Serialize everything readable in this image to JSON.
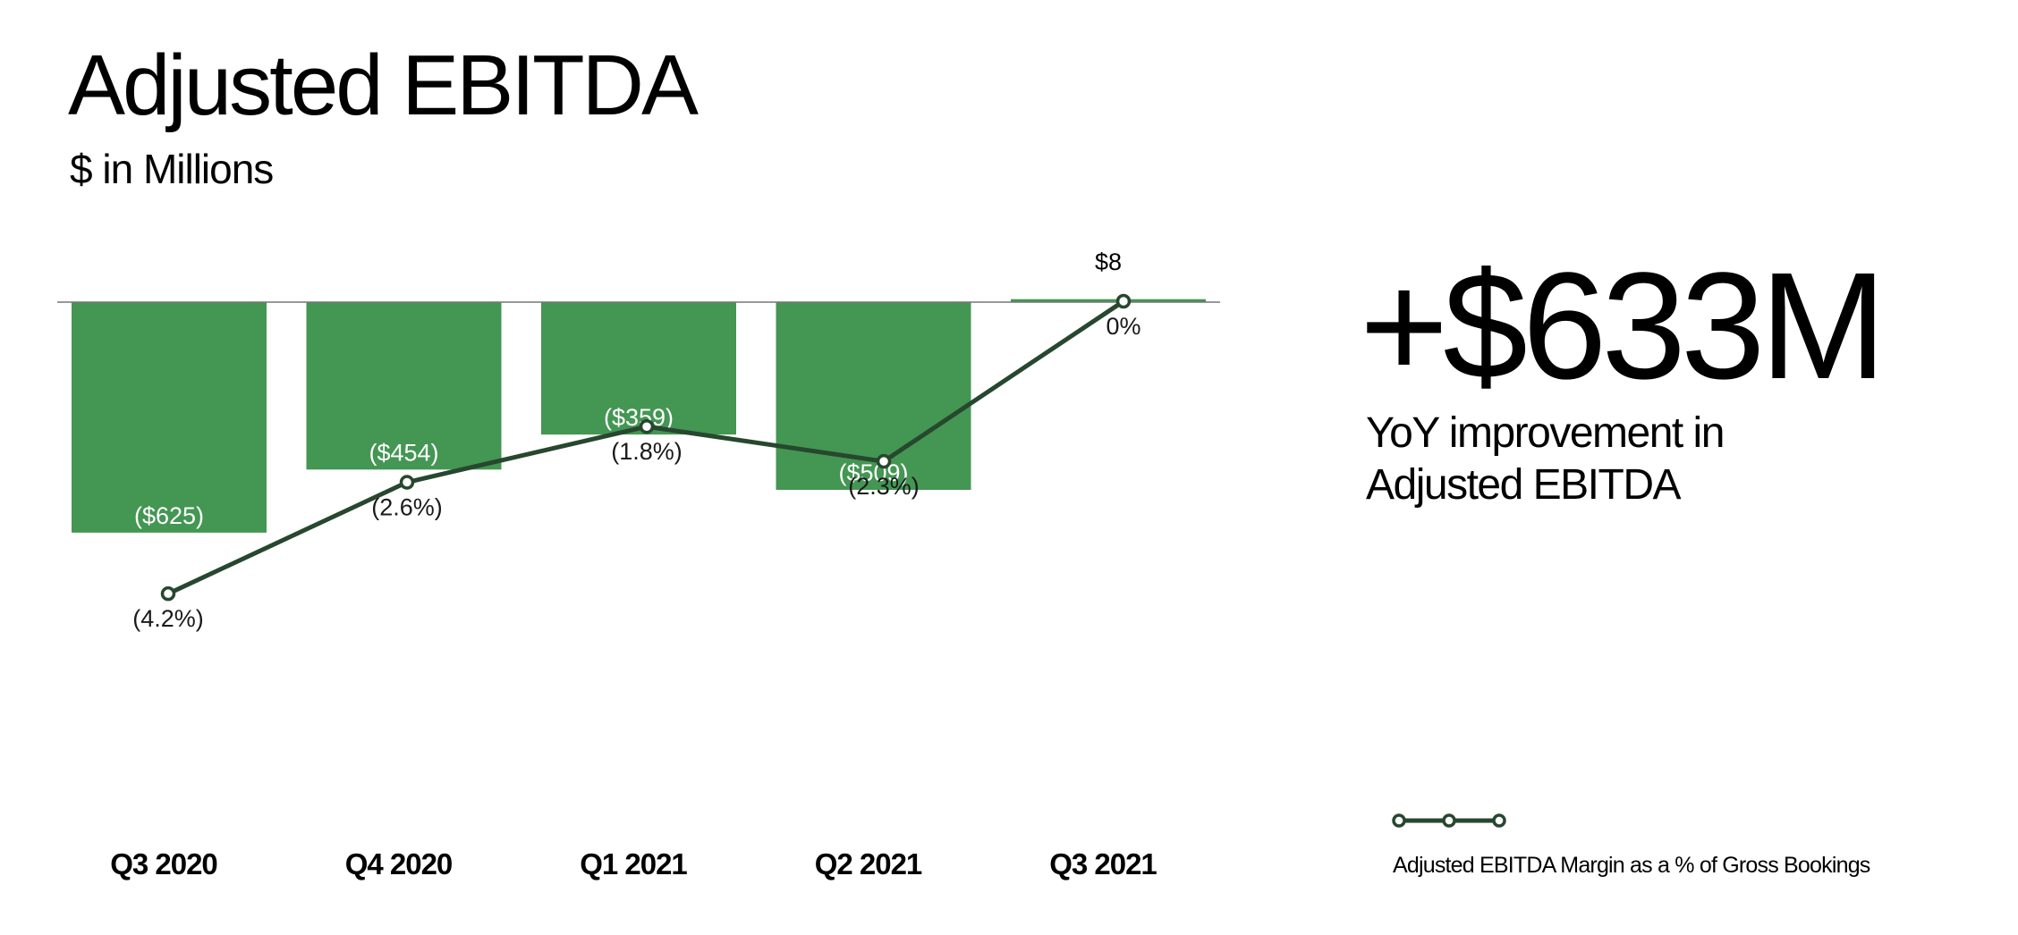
{
  "header": {
    "title": "Adjusted EBITDA",
    "subtitle": "$ in Millions"
  },
  "highlight": {
    "value": "+$633M",
    "caption": "YoY improvement in Adjusted EBITDA"
  },
  "legend": {
    "line_label": "Adjusted EBITDA Margin as a % of Gross Bookings"
  },
  "colors": {
    "bar": "#449653",
    "line": "#27472f",
    "bar_label": "#ffffff",
    "axis": "#777777"
  },
  "chart_data": {
    "type": "bar",
    "categories": [
      "Q3 2020",
      "Q4 2020",
      "Q1 2021",
      "Q2 2021",
      "Q3 2021"
    ],
    "values": [
      -625,
      -454,
      -359,
      -509,
      8
    ],
    "bar_labels": [
      "($625)",
      "($454)",
      "($359)",
      "($509)",
      "$8"
    ],
    "title": "Adjusted EBITDA",
    "subtitle": "$ in Millions",
    "xlabel": "",
    "ylabel": "",
    "grid": false,
    "line_series": {
      "name": "Adjusted EBITDA Margin as a % of Gross Bookings",
      "values": [
        -4.2,
        -2.6,
        -1.8,
        -2.3,
        0
      ],
      "labels": [
        "(4.2%)",
        "(2.6%)",
        "(1.8%)",
        "(2.3%)",
        "0%"
      ]
    },
    "legend_position": "bottom-right"
  }
}
